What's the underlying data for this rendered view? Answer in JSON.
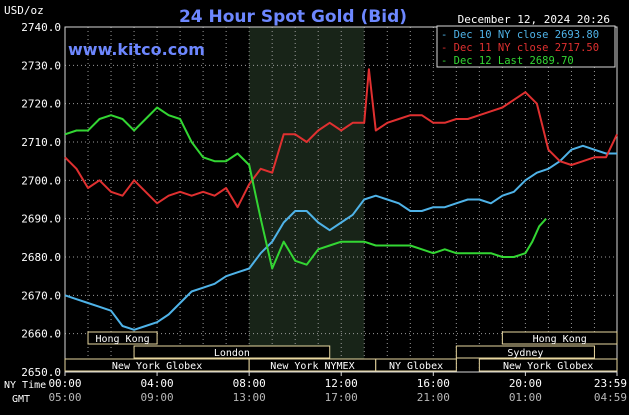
{
  "chart_data": {
    "type": "line",
    "title": "24 Hour Spot Gold (Bid)",
    "ylabel": "USD/oz",
    "watermark": "www.kitco.com",
    "timestamp": "December 12, 2024 20:26",
    "ylim": [
      2650,
      2740
    ],
    "y_ticks": [
      "2740.0",
      "2730.0",
      "2720.0",
      "2710.0",
      "2700.0",
      "2690.0",
      "2680.0",
      "2670.0",
      "2660.0",
      "2650.0"
    ],
    "x_row_ny_label": "NY Time",
    "x_row_gmt_label": "GMT",
    "x_ticks_ny": [
      "00:00",
      "04:00",
      "08:00",
      "12:00",
      "16:00",
      "20:00",
      "23:59"
    ],
    "x_ticks_gmt": [
      "05:00",
      "09:00",
      "13:00",
      "17:00",
      "21:00",
      "01:00",
      "04:59"
    ],
    "grid": true,
    "legend_position": "top-right",
    "highlight_band": {
      "from_hour": 8.0,
      "to_hour": 13.0
    },
    "series": [
      {
        "name": "Dec 10 NY close 2693.80",
        "color": "#4fb3e8",
        "points": [
          [
            0,
            2670
          ],
          [
            0.5,
            2669
          ],
          [
            1,
            2668
          ],
          [
            1.5,
            2667
          ],
          [
            2,
            2666
          ],
          [
            2.5,
            2662
          ],
          [
            3,
            2661
          ],
          [
            3.5,
            2662
          ],
          [
            4,
            2663
          ],
          [
            4.5,
            2665
          ],
          [
            5,
            2668
          ],
          [
            5.5,
            2671
          ],
          [
            6,
            2672
          ],
          [
            6.5,
            2673
          ],
          [
            7,
            2675
          ],
          [
            7.5,
            2676
          ],
          [
            8,
            2677
          ],
          [
            8.5,
            2681
          ],
          [
            9,
            2684
          ],
          [
            9.5,
            2689
          ],
          [
            10,
            2692
          ],
          [
            10.5,
            2692
          ],
          [
            11,
            2689
          ],
          [
            11.5,
            2687
          ],
          [
            12,
            2689
          ],
          [
            12.5,
            2691
          ],
          [
            13,
            2695
          ],
          [
            13.5,
            2696
          ],
          [
            14,
            2695
          ],
          [
            14.5,
            2694
          ],
          [
            15,
            2692
          ],
          [
            15.5,
            2692
          ],
          [
            16,
            2693
          ],
          [
            16.5,
            2693
          ],
          [
            17,
            2694
          ],
          [
            17.5,
            2695
          ],
          [
            18,
            2695
          ],
          [
            18.5,
            2694
          ],
          [
            19,
            2696
          ],
          [
            19.5,
            2697
          ],
          [
            20,
            2700
          ],
          [
            20.5,
            2702
          ],
          [
            21,
            2703
          ],
          [
            21.5,
            2705
          ],
          [
            22,
            2708
          ],
          [
            22.5,
            2709
          ],
          [
            23,
            2708
          ],
          [
            23.5,
            2707
          ],
          [
            23.98,
            2707
          ]
        ]
      },
      {
        "name": "Dec 11 NY close 2717.50",
        "color": "#e03030",
        "points": [
          [
            0,
            2706
          ],
          [
            0.5,
            2703
          ],
          [
            1,
            2698
          ],
          [
            1.5,
            2700
          ],
          [
            2,
            2697
          ],
          [
            2.5,
            2696
          ],
          [
            3,
            2700
          ],
          [
            3.5,
            2697
          ],
          [
            4,
            2694
          ],
          [
            4.5,
            2696
          ],
          [
            5,
            2697
          ],
          [
            5.5,
            2696
          ],
          [
            6,
            2697
          ],
          [
            6.5,
            2696
          ],
          [
            7,
            2698
          ],
          [
            7.5,
            2693
          ],
          [
            8,
            2699
          ],
          [
            8.5,
            2703
          ],
          [
            9,
            2702
          ],
          [
            9.5,
            2712
          ],
          [
            10,
            2712
          ],
          [
            10.5,
            2710
          ],
          [
            11,
            2713
          ],
          [
            11.5,
            2715
          ],
          [
            12,
            2713
          ],
          [
            12.5,
            2715
          ],
          [
            13,
            2715
          ],
          [
            13.2,
            2729
          ],
          [
            13.5,
            2713
          ],
          [
            14,
            2715
          ],
          [
            14.5,
            2716
          ],
          [
            15,
            2717
          ],
          [
            15.5,
            2717
          ],
          [
            16,
            2715
          ],
          [
            16.5,
            2715
          ],
          [
            17,
            2716
          ],
          [
            17.5,
            2716
          ],
          [
            18,
            2717
          ],
          [
            18.5,
            2718
          ],
          [
            19,
            2719
          ],
          [
            19.5,
            2721
          ],
          [
            20,
            2723
          ],
          [
            20.5,
            2720
          ],
          [
            21,
            2708
          ],
          [
            21.5,
            2705
          ],
          [
            22,
            2704
          ],
          [
            22.5,
            2705
          ],
          [
            23,
            2706
          ],
          [
            23.5,
            2706
          ],
          [
            23.98,
            2712
          ]
        ]
      },
      {
        "name": "Dec 12 Last 2689.70",
        "color": "#33d633",
        "points": [
          [
            0,
            2712
          ],
          [
            0.5,
            2713
          ],
          [
            1,
            2713
          ],
          [
            1.5,
            2716
          ],
          [
            2,
            2717
          ],
          [
            2.5,
            2716
          ],
          [
            3,
            2713
          ],
          [
            3.5,
            2716
          ],
          [
            4,
            2719
          ],
          [
            4.5,
            2717
          ],
          [
            5,
            2716
          ],
          [
            5.5,
            2710
          ],
          [
            6,
            2706
          ],
          [
            6.5,
            2705
          ],
          [
            7,
            2705
          ],
          [
            7.5,
            2707
          ],
          [
            8,
            2704
          ],
          [
            8.5,
            2690
          ],
          [
            9,
            2677
          ],
          [
            9.5,
            2684
          ],
          [
            10,
            2679
          ],
          [
            10.5,
            2678
          ],
          [
            11,
            2682
          ],
          [
            11.5,
            2683
          ],
          [
            12,
            2684
          ],
          [
            12.5,
            2684
          ],
          [
            13,
            2684
          ],
          [
            13.5,
            2683
          ],
          [
            14,
            2683
          ],
          [
            14.5,
            2683
          ],
          [
            15,
            2683
          ],
          [
            15.5,
            2682
          ],
          [
            16,
            2681
          ],
          [
            16.5,
            2682
          ],
          [
            17,
            2681
          ],
          [
            17.5,
            2681
          ],
          [
            18,
            2681
          ],
          [
            18.5,
            2681
          ],
          [
            19,
            2680
          ],
          [
            19.5,
            2680
          ],
          [
            20,
            2681
          ],
          [
            20.3,
            2684
          ],
          [
            20.6,
            2688
          ],
          [
            20.9,
            2690
          ]
        ]
      }
    ],
    "sessions": [
      {
        "name": "Hong Kong",
        "start": 1.0,
        "end": 4.0,
        "row": 1
      },
      {
        "name": "London",
        "start": 3.0,
        "end": 11.5,
        "row": 2
      },
      {
        "name": "New York Globex",
        "start": 0.0,
        "end": 8.0,
        "row": 3
      },
      {
        "name": "New York NYMEX",
        "start": 8.0,
        "end": 13.5,
        "row": 3
      },
      {
        "name": "NY Globex",
        "start": 13.5,
        "end": 17.0,
        "row": 3
      },
      {
        "name": "New York Globex",
        "start": 18.0,
        "end": 23.98,
        "row": 3
      },
      {
        "name": "Sydney",
        "start": 17.0,
        "end": 23.0,
        "row": 2
      },
      {
        "name": "Hong Kong",
        "start": 19.0,
        "end": 23.98,
        "row": 1
      }
    ]
  }
}
